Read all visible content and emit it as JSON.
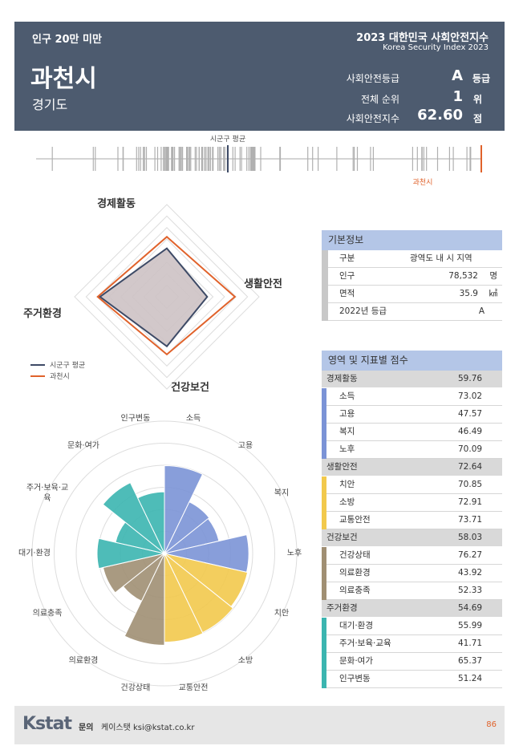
{
  "header": {
    "category": "인구 20만 미만",
    "title": "2023 대한민국 사회안전지수",
    "subtitle": "Korea Security Index 2023",
    "city": "과천시",
    "province": "경기도",
    "grade_label": "사회안전등급",
    "grade": "A",
    "grade_unit": "등급",
    "rank_label": "전체 순위",
    "rank": 1,
    "rank_unit": "위",
    "index_label": "사회안전지수",
    "index": "62.60",
    "index_unit": "점"
  },
  "strip": {
    "avg_label": "시군구 평균",
    "city_label": "과천시"
  },
  "radar": {
    "axes": [
      "경제활동",
      "생활안전",
      "건강보건",
      "주거환경"
    ],
    "rlim": [
      0,
      80
    ],
    "series": [
      {
        "name": "시군구 평균",
        "color": "#3d4a66",
        "values": [
          42,
          35,
          43,
          58
        ]
      },
      {
        "name": "과천시",
        "color": "#e0622b",
        "values": [
          52,
          59,
          50,
          60
        ]
      }
    ]
  },
  "basic": {
    "title": "기본정보",
    "rows": [
      [
        "구분",
        "광역도 내 시 지역"
      ],
      [
        "인구",
        "78,532",
        "명"
      ],
      [
        "면적",
        35.9,
        "㎢"
      ],
      [
        "2022년 등급",
        "A"
      ]
    ]
  },
  "scores": {
    "title": "영역 및 지표별 점수",
    "rlim": [
      0,
      110
    ],
    "groups": [
      {
        "name": "경제활동",
        "value": 59.76,
        "color": "#7b93d6",
        "items": [
          {
            "name": "소득",
            "value": 73.02
          },
          {
            "name": "고용",
            "value": 47.57
          },
          {
            "name": "복지",
            "value": 46.49
          },
          {
            "name": "노후",
            "value": 70.09
          }
        ]
      },
      {
        "name": "생활안전",
        "value": 72.64,
        "color": "#f2c94c",
        "items": [
          {
            "name": "치안",
            "value": 70.85
          },
          {
            "name": "소방",
            "value": 72.91
          },
          {
            "name": "교통안전",
            "value": 73.71
          }
        ]
      },
      {
        "name": "건강보건",
        "value": 58.03,
        "color": "#a08f73",
        "items": [
          {
            "name": "건강상태",
            "value": 76.27
          },
          {
            "name": "의료환경",
            "value": 43.92
          },
          {
            "name": "의료충족",
            "value": 52.33
          }
        ]
      },
      {
        "name": "주거환경",
        "value": 54.69,
        "color": "#3bb5b0",
        "items": [
          {
            "name": "대기·환경",
            "value": 55.99
          },
          {
            "name": "주거·보육·교육",
            "value": 41.71
          },
          {
            "name": "문화·여가",
            "value": 65.37
          },
          {
            "name": "인구변동",
            "value": 51.24
          }
        ]
      }
    ]
  },
  "footer": {
    "logo": "Kstat",
    "contact_label": "문의",
    "contact": "케이스탯 ksi@kstat.co.kr",
    "page": "86"
  }
}
